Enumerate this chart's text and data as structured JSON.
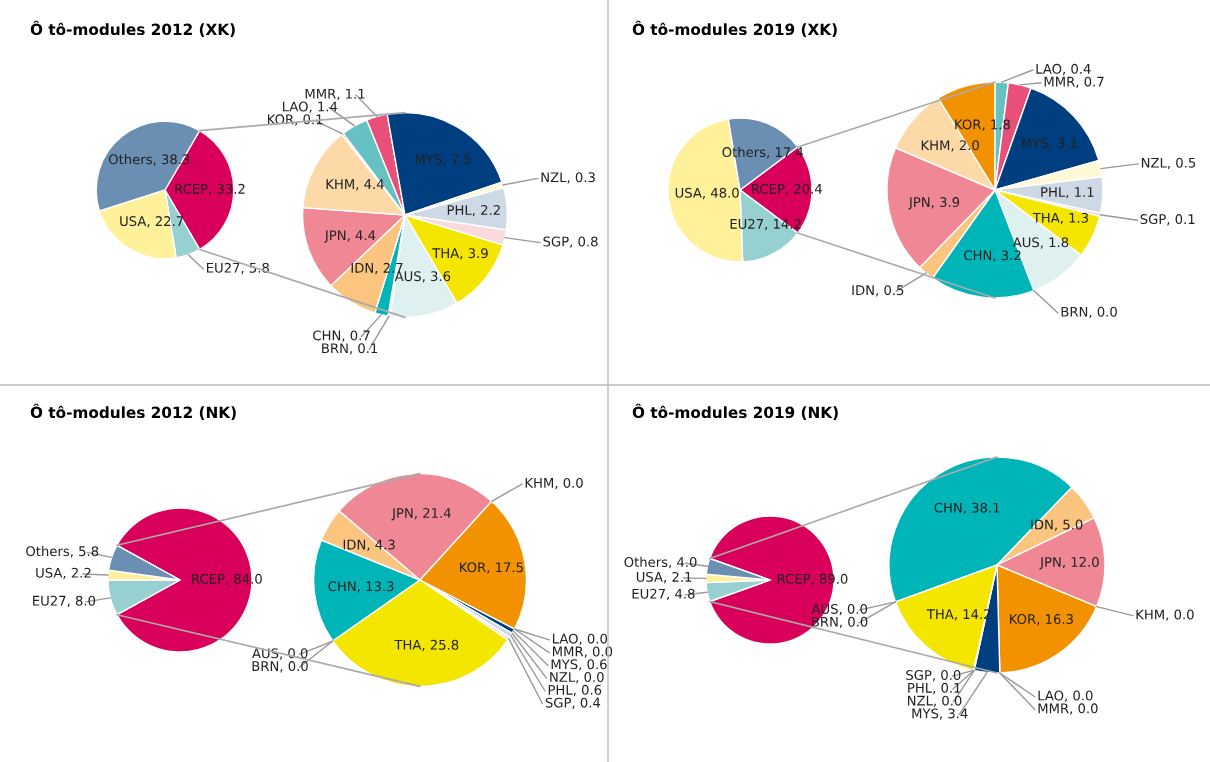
{
  "chart_data": [
    {
      "type": "pie",
      "title": "Ô tô-modules 2012 (XK)",
      "categories": [
        "RCEP",
        "EU27",
        "USA",
        "Others"
      ],
      "values": [
        33.2,
        5.8,
        22.7,
        38.3
      ],
      "colors": [
        "#d9005b",
        "#96d0d0",
        "#fff09a",
        "#6a8fb3"
      ],
      "value_labels": [
        ", 33.2",
        ", 5.8",
        ", 22.7",
        ", 38.3"
      ]
    },
    {
      "type": "pie",
      "categories": [
        "AUS",
        "BRN",
        "CHN",
        "IDN",
        "JPN",
        "KHM",
        "KOR",
        "LAO",
        "MMR",
        "MYS",
        "NZL",
        "PHL",
        "SGP",
        "THA"
      ],
      "values": [
        3.6,
        0.1,
        0.7,
        2.7,
        4.4,
        4.4,
        0.1,
        1.4,
        1.1,
        7.5,
        0.3,
        2.2,
        0.8,
        3.9
      ],
      "colors": [
        "#dff0f0",
        "#f2e6cc",
        "#00b5b8",
        "#fbc47f",
        "#f08795",
        "#fdd9a8",
        "#f39200",
        "#66c2c2",
        "#e8507a",
        "#003f7f",
        "#fff9d6",
        "#cdd9e5",
        "#fadadd",
        "#f5e600"
      ],
      "value_labels": [
        ", 3.6",
        ", 0.1",
        ", 0.7",
        ", 2.7",
        ", 4.4",
        ", 4.4",
        ", 0.1",
        ", 1.4",
        ", 1.1",
        ", 7.5",
        ", 0.3",
        ", 2.2",
        ", 0.8",
        ", 3.9"
      ]
    },
    {
      "type": "pie",
      "title": "Ô tô-modules 2019 (XK)",
      "categories": [
        "RCEP",
        "EU27",
        "USA",
        "Others"
      ],
      "values": [
        20.4,
        14.2,
        48.0,
        17.4
      ],
      "colors": [
        "#d9005b",
        "#96d0d0",
        "#fff09a",
        "#6a8fb3"
      ],
      "value_labels": [
        ", 20.4",
        ", 14.2",
        ", 48.0",
        ", 17.4"
      ]
    },
    {
      "type": "pie",
      "categories": [
        "AUS",
        "BRN",
        "CHN",
        "IDN",
        "JPN",
        "KHM",
        "KOR",
        "LAO",
        "MMR",
        "MYS",
        "NZL",
        "PHL",
        "SGP",
        "THA"
      ],
      "values": [
        1.8,
        0.0,
        3.2,
        0.5,
        3.9,
        2.0,
        1.8,
        0.4,
        0.7,
        3.1,
        0.5,
        1.1,
        0.1,
        1.3
      ],
      "colors": [
        "#dff0f0",
        "#f2e6cc",
        "#00b5b8",
        "#fbc47f",
        "#f08795",
        "#fdd9a8",
        "#f39200",
        "#66c2c2",
        "#e8507a",
        "#003f7f",
        "#fff9d6",
        "#cdd9e5",
        "#fadadd",
        "#f5e600"
      ],
      "value_labels": [
        ", 1.8",
        ", 0.0",
        ", 3.2",
        ", 0.5",
        ", 3.9",
        ", 2.0",
        ", 1.8",
        ", 0.4",
        ", 0.7",
        ", 3.1",
        ", 0.5",
        ", 1.1",
        ", 0.1",
        ", 1.3"
      ]
    },
    {
      "type": "pie",
      "title": "Ô tô-modules 2012 (NK)",
      "categories": [
        "RCEP",
        "EU27",
        "USA",
        "Others"
      ],
      "values": [
        84.0,
        8.0,
        2.2,
        5.8
      ],
      "colors": [
        "#d9005b",
        "#96d0d0",
        "#fff09a",
        "#6a8fb3"
      ],
      "value_labels": [
        ", 84.0",
        ", 8.0",
        ", 2.2",
        ", 5.8"
      ]
    },
    {
      "type": "pie",
      "categories": [
        "AUS",
        "BRN",
        "CHN",
        "IDN",
        "JPN",
        "KHM",
        "KOR",
        "LAO",
        "MMR",
        "MYS",
        "NZL",
        "PHL",
        "SGP",
        "THA"
      ],
      "values": [
        0.0,
        0.0,
        13.3,
        4.3,
        21.4,
        0.0,
        17.5,
        0.0,
        0.0,
        0.6,
        0.0,
        0.6,
        0.4,
        25.8
      ],
      "colors": [
        "#dff0f0",
        "#f2e6cc",
        "#00b5b8",
        "#fbc47f",
        "#f08795",
        "#fdd9a8",
        "#f39200",
        "#66c2c2",
        "#e8507a",
        "#003f7f",
        "#fff9d6",
        "#cdd9e5",
        "#fadadd",
        "#f5e600"
      ],
      "value_labels": [
        ", 0.0",
        ", 0.0",
        ", 13.3",
        ", 4.3",
        ", 21.4",
        ", 0.0",
        ", 17.5",
        ", 0.0",
        ", 0.0",
        ", 0.6",
        ", 0.0",
        ", 0.6",
        ", 0.4",
        ", 25.8"
      ]
    },
    {
      "type": "pie",
      "title": "Ô tô-modules 2019 (NK)",
      "categories": [
        "RCEP",
        "EU27",
        "USA",
        "Others"
      ],
      "values": [
        89.0,
        4.8,
        2.1,
        4.0
      ],
      "colors": [
        "#d9005b",
        "#96d0d0",
        "#fff09a",
        "#6a8fb3"
      ],
      "value_labels": [
        ", 89.0",
        ", 4.8",
        ", 2.1",
        ", 4.0"
      ]
    },
    {
      "type": "pie",
      "categories": [
        "AUS",
        "BRN",
        "CHN",
        "IDN",
        "JPN",
        "KHM",
        "KOR",
        "LAO",
        "MMR",
        "MYS",
        "NZL",
        "PHL",
        "SGP",
        "THA"
      ],
      "values": [
        0.0,
        0.0,
        38.1,
        5.0,
        12.0,
        0.0,
        16.3,
        0.0,
        0.0,
        3.4,
        0.0,
        0.1,
        0.0,
        14.2
      ],
      "colors": [
        "#dff0f0",
        "#f2e6cc",
        "#00b5b8",
        "#fbc47f",
        "#f08795",
        "#fdd9a8",
        "#f39200",
        "#66c2c2",
        "#e8507a",
        "#003f7f",
        "#fff9d6",
        "#cdd9e5",
        "#fadadd",
        "#f5e600"
      ],
      "value_labels": [
        ", 0.0",
        ", 0.0",
        ", 38.1",
        ", 5.0",
        ", 12.0",
        ", 0.0",
        ", 16.3",
        ", 0.0",
        ", 0.0",
        ", 3.4",
        ", 0.0",
        ", 0.1",
        ", 0.0",
        ", 14.2"
      ]
    }
  ]
}
